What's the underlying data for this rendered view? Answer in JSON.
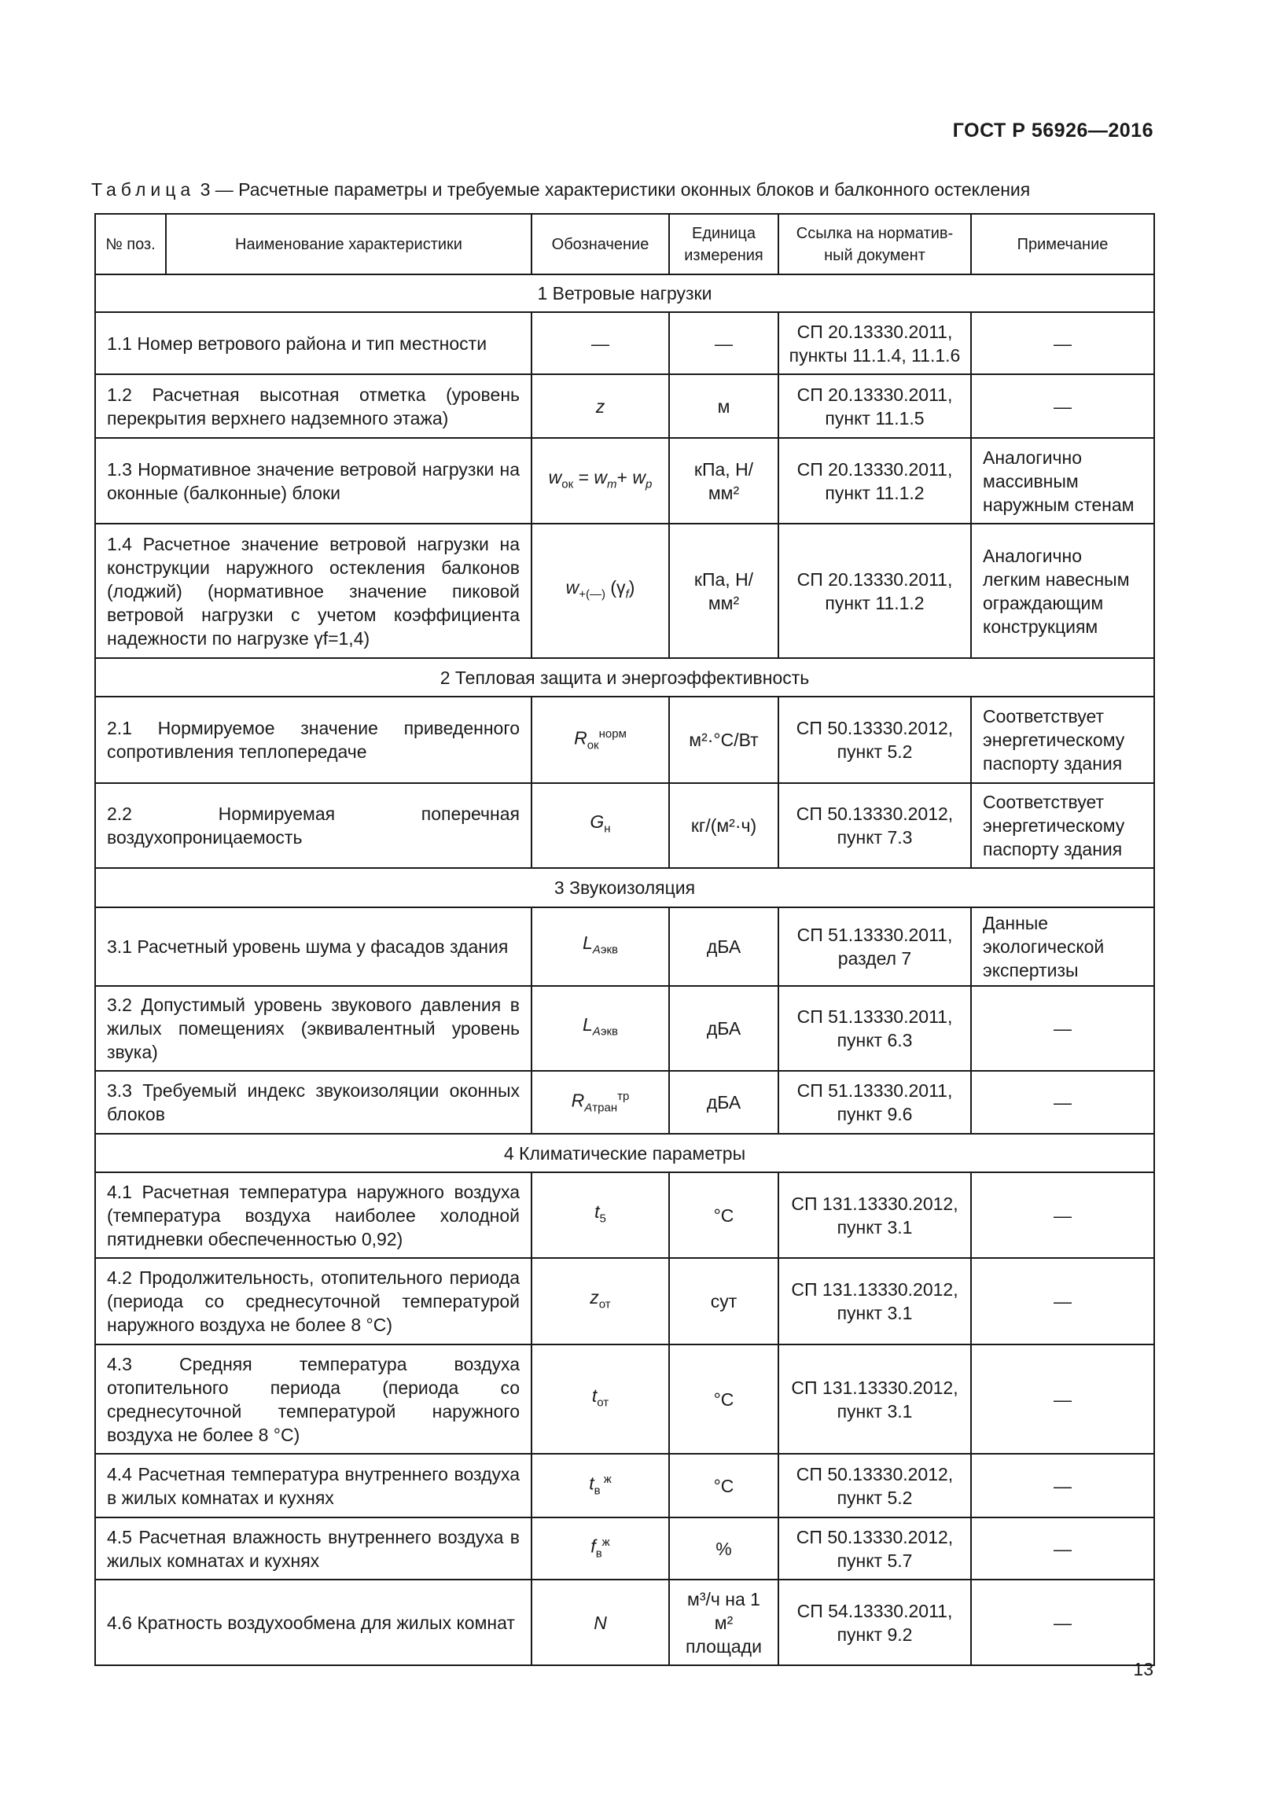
{
  "header": {
    "doc_code": "ГОСТ Р 56926—2016"
  },
  "caption": {
    "label": "Таблица",
    "number": "3",
    "title": "— Расчетные параметры и требуемые характеристики оконных блоков и балконного остекления"
  },
  "columns": [
    "№ поз.",
    "Наименование характеристики",
    "Обозначение",
    "Единица измерения",
    "Ссылка на норматив-ный документ",
    "Примечание"
  ],
  "rows": [
    {
      "section": "1  Ветровые нагрузки"
    },
    {
      "name": "1.1  Номер ветрового района и тип местности",
      "sym": [
        {
          "t": "—",
          "s": "n"
        }
      ],
      "unit": "—",
      "ref": "СП 20.13330.2011, пункты 11.1.4, 11.1.6",
      "note": "—"
    },
    {
      "name": "1.2 Расчетная высотная отметка (уровень перекрытия верхнего надземного этажа)",
      "sym": [
        {
          "t": "z",
          "s": "i"
        }
      ],
      "unit": "м",
      "ref": "СП 20.13330.2011, пункт 11.1.5",
      "note": "—"
    },
    {
      "name": "1.3 Нормативное значение ветровой нагрузки на оконные (балконные) блоки",
      "sym": [
        {
          "t": "w",
          "s": "i"
        },
        {
          "t": "ок",
          "s": "sub"
        },
        {
          "t": " = ",
          "s": "n"
        },
        {
          "t": "w",
          "s": "i"
        },
        {
          "t": "m",
          "s": "isub"
        },
        {
          "t": "+ ",
          "s": "n"
        },
        {
          "t": "w",
          "s": "i"
        },
        {
          "t": "p",
          "s": "isub"
        }
      ],
      "unit": "кПа, Н/мм²",
      "ref": "СП 20.13330.2011, пункт 11.1.2",
      "note": "Аналогично массивным наружным стенам"
    },
    {
      "name": "1.4 Расчетное значение ветровой нагрузки на конструкции наружного остекления балконов (лоджий) (нормативное значение пиковой ветровой нагрузки с учетом коэффициента надежности по нагрузке γf=1,4)",
      "sym": [
        {
          "t": "w",
          "s": "i"
        },
        {
          "t": "+(—)",
          "s": "sub"
        },
        {
          "t": " (γ",
          "s": "n"
        },
        {
          "t": "f",
          "s": "isub"
        },
        {
          "t": ")",
          "s": "n"
        }
      ],
      "unit": "кПа, Н/мм²",
      "ref": "СП 20.13330.2011, пункт 11.1.2",
      "note": "Аналогично легким навесным ограждающим конструкциям"
    },
    {
      "section": "2 Тепловая защита и энергоэффективность"
    },
    {
      "name": "2.1 Нормируемое значение приведенного сопротивления теплопередаче",
      "sym": [
        {
          "t": "R",
          "s": "i"
        },
        {
          "t": "ок",
          "s": "sub"
        },
        {
          "t": "норм",
          "s": "sup"
        }
      ],
      "unit": "м²·°С/Вт",
      "ref": "СП 50.13330.2012, пункт 5.2",
      "note": "Соответствует энергетическому паспорту здания"
    },
    {
      "name": "2.2 Нормируемая поперечная воздухопроницаемость",
      "sym": [
        {
          "t": "G",
          "s": "i"
        },
        {
          "t": "н",
          "s": "sub"
        }
      ],
      "unit": "кг/(м²·ч)",
      "ref": "СП 50.13330.2012, пункт 7.3",
      "note": "Соответствует энергетическому паспорту здания"
    },
    {
      "section": "3 Звукоизоляция"
    },
    {
      "name": "3.1 Расчетный уровень шума у фасадов здания",
      "sym": [
        {
          "t": "L",
          "s": "i"
        },
        {
          "t": "A",
          "s": "isub"
        },
        {
          "t": "экв",
          "s": "sub"
        }
      ],
      "unit": "дБА",
      "ref": "СП 51.13330.2011, раздел 7",
      "note": "Данные экологической экспертизы"
    },
    {
      "name": "3.2 Допустимый уровень звукового давления в жилых помещениях (эквивалентный уровень звука)",
      "sym": [
        {
          "t": "L",
          "s": "i"
        },
        {
          "t": "A",
          "s": "isub"
        },
        {
          "t": "экв",
          "s": "sub"
        }
      ],
      "unit": "дБА",
      "ref": "СП 51.13330.2011, пункт 6.3",
      "note": "—"
    },
    {
      "name": "3.3 Требуемый индекс звукоизоляции оконных блоков",
      "sym": [
        {
          "t": "R",
          "s": "i"
        },
        {
          "t": "A",
          "s": "isub"
        },
        {
          "t": "тран",
          "s": "sub"
        },
        {
          "t": "тр",
          "s": "sup"
        }
      ],
      "unit": "дБА",
      "ref": "СП 51.13330.2011, пункт 9.6",
      "note": "—"
    },
    {
      "section": "4 Климатические параметры"
    },
    {
      "name": "4.1 Расчетная температура наружного воздуха (температура воздуха наиболее холодной пятидневки обеспеченностью 0,92)",
      "sym": [
        {
          "t": "t",
          "s": "i"
        },
        {
          "t": "5",
          "s": "sub"
        }
      ],
      "unit": "°С",
      "ref": "СП 131.13330.2012, пункт 3.1",
      "note": "—"
    },
    {
      "name": "4.2 Продолжительность, отопительного периода (периода со среднесуточной температурой наружного воздуха не более 8 °С)",
      "sym": [
        {
          "t": "z",
          "s": "i"
        },
        {
          "t": "от",
          "s": "sub"
        }
      ],
      "unit": "сут",
      "ref": "СП 131.13330.2012, пункт 3.1",
      "note": "—"
    },
    {
      "name": "4.3 Средняя температура воздуха отопительного периода (периода со среднесуточной температурой наружного воздуха не более 8 °С)",
      "sym": [
        {
          "t": "t",
          "s": "i"
        },
        {
          "t": "от",
          "s": "sub"
        }
      ],
      "unit": "°С",
      "ref": "СП 131.13330.2012, пункт 3.1",
      "note": "—"
    },
    {
      "name": "4.4 Расчетная температура внутреннего воздуха в жилых комнатах и кухнях",
      "sym": [
        {
          "t": "t",
          "s": "i"
        },
        {
          "t": "в",
          "s": "sub"
        },
        {
          "t": " ж",
          "s": "sup"
        }
      ],
      "unit": "°С",
      "ref": "СП 50.13330.2012, пункт 5.2",
      "note": "—"
    },
    {
      "name": "4.5 Расчетная влажность внутреннего воздуха в жилых комнатах и кухнях",
      "sym": [
        {
          "t": "f",
          "s": "i"
        },
        {
          "t": "в",
          "s": "sub"
        },
        {
          "t": "ж",
          "s": "sup"
        }
      ],
      "unit": "%",
      "ref": "СП 50.13330.2012, пункт 5.7",
      "note": "—"
    },
    {
      "name": "4.6 Кратность воздухообмена для жилых комнат",
      "sym": [
        {
          "t": "N",
          "s": "i"
        }
      ],
      "unit": "м³/ч на 1 м² площади",
      "ref": "СП 54.13330.2011, пункт 9.2",
      "note": "—"
    }
  ],
  "footer": {
    "page_number": "13"
  }
}
